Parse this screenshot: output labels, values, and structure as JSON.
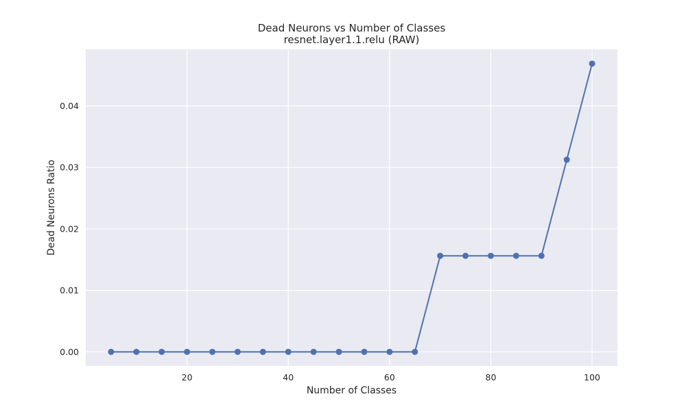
{
  "chart_data": {
    "type": "line",
    "title": "Dead Neurons vs Number of Classes",
    "subtitle": "resnet.layer1.1.relu (RAW)",
    "xlabel": "Number of Classes",
    "ylabel": "Dead Neurons Ratio",
    "xlim": [
      0,
      105
    ],
    "ylim": [
      -0.0023,
      0.0492
    ],
    "xticks": [
      20,
      40,
      60,
      80,
      100
    ],
    "yticks": [
      0.0,
      0.01,
      0.02,
      0.03,
      0.04
    ],
    "xtick_labels": [
      "20",
      "40",
      "60",
      "80",
      "100"
    ],
    "ytick_labels": [
      "0.00",
      "0.01",
      "0.02",
      "0.03",
      "0.04"
    ],
    "grid": true,
    "series": [
      {
        "x": [
          5,
          10,
          15,
          20,
          25,
          30,
          35,
          40,
          45,
          50,
          55,
          60,
          65,
          70,
          75,
          80,
          85,
          90,
          95,
          100
        ],
        "y": [
          0.0,
          0.0,
          0.0,
          0.0,
          0.0,
          0.0,
          0.0,
          0.0,
          0.0,
          0.0,
          0.0,
          0.0,
          0.0,
          0.015625,
          0.015625,
          0.015625,
          0.015625,
          0.015625,
          0.03125,
          0.046875
        ],
        "color": "#4c72b0",
        "marker": "circle"
      }
    ],
    "style": {
      "plot_background": "#eaeaf2",
      "grid_color": "#ffffff"
    }
  }
}
